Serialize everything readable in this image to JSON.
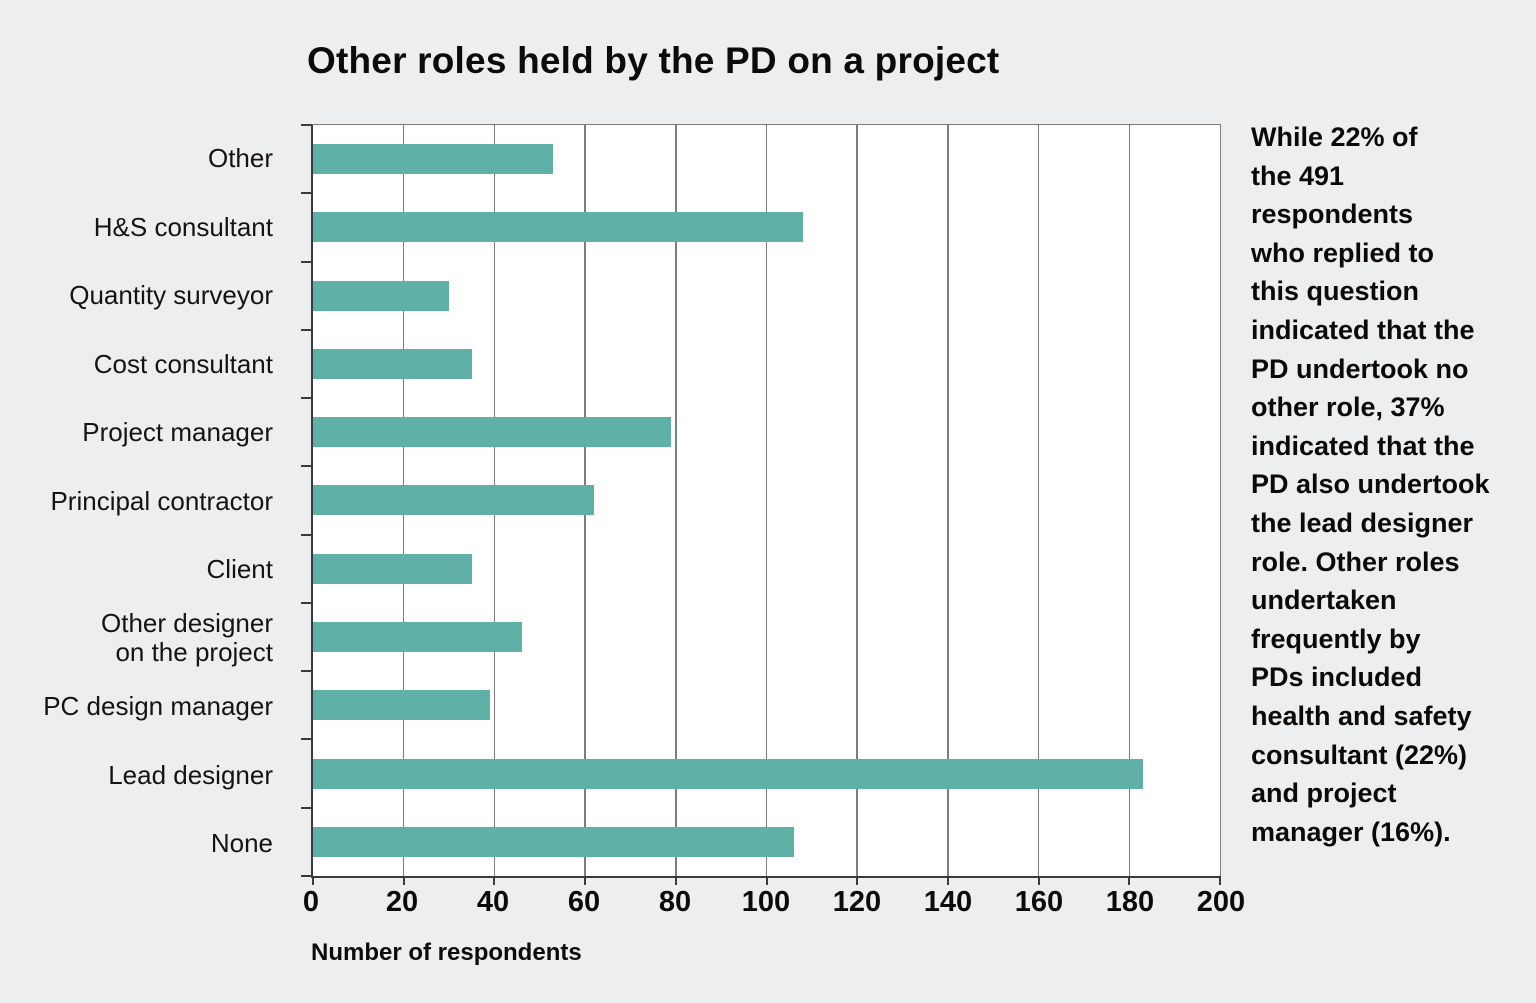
{
  "page": {
    "background_color": "#edeef0"
  },
  "chart_data": {
    "type": "bar",
    "orientation": "horizontal",
    "title": "Other roles held by the PD on a project",
    "xlabel": "Number of respondents",
    "categories": [
      "Other",
      "H&S consultant",
      "Quantity surveyor",
      "Cost consultant",
      "Project manager",
      "Principal contractor",
      "Client",
      "Other designer\non the project",
      "PC design manager",
      "Lead designer",
      "None"
    ],
    "values": [
      53,
      108,
      30,
      35,
      79,
      62,
      35,
      46,
      39,
      183,
      106
    ],
    "xlim": [
      0,
      200
    ],
    "xticks": [
      0,
      20,
      40,
      60,
      80,
      100,
      120,
      140,
      160,
      180,
      200
    ],
    "grid": true,
    "legend": false,
    "bar_color": "#5fb1a8",
    "gridline_color": "#7d7d7d",
    "axis_color": "#3a3a3a",
    "plot_background": "#ffffff"
  },
  "note": {
    "text": "While 22% of\nthe 491\nrespondents\nwho replied to\nthis question\nindicated that the\nPD undertook no\nother role, 37%\nindicated that the\nPD also undertook\nthe lead designer\nrole. Other roles\nundertaken\nfrequently by\nPDs included\nhealth and safety\nconsultant (22%)\nand project\nmanager (16%)."
  }
}
